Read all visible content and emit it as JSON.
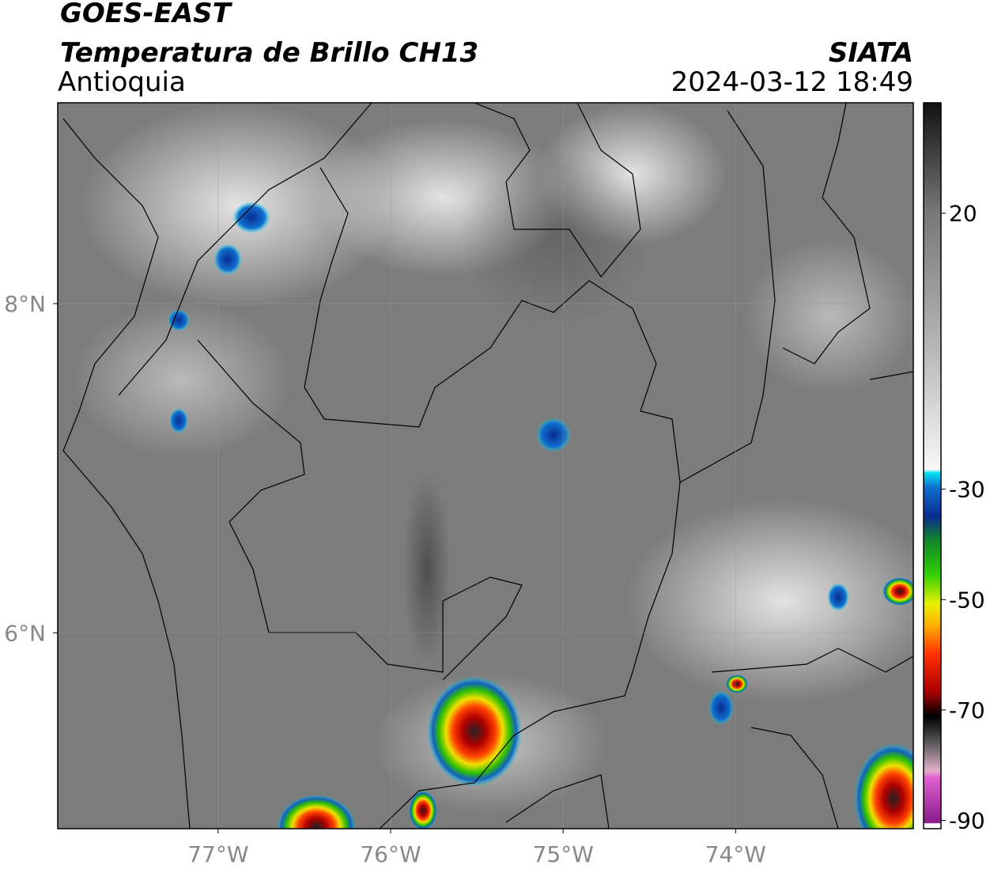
{
  "header": {
    "title": "GOES-EAST",
    "subtitle": "Temperatura de Brillo CH13",
    "region": "Antioquia",
    "source": "SIATA",
    "datetime": "2024-03-12 18:49"
  },
  "map": {
    "xlim": [
      -77.93,
      -72.97
    ],
    "ylim": [
      4.81,
      9.22
    ],
    "xticks": [
      {
        "value": -77,
        "label": "77°W"
      },
      {
        "value": -76,
        "label": "76°W"
      },
      {
        "value": -75,
        "label": "75°W"
      },
      {
        "value": -74,
        "label": "74°W"
      }
    ],
    "yticks": [
      {
        "value": 8,
        "label": "8°N"
      },
      {
        "value": 6,
        "label": "6°N"
      }
    ]
  },
  "colorbar": {
    "lim": [
      -91.5,
      40
    ],
    "ticks": [
      20,
      -30,
      -50,
      -70,
      -90
    ]
  }
}
